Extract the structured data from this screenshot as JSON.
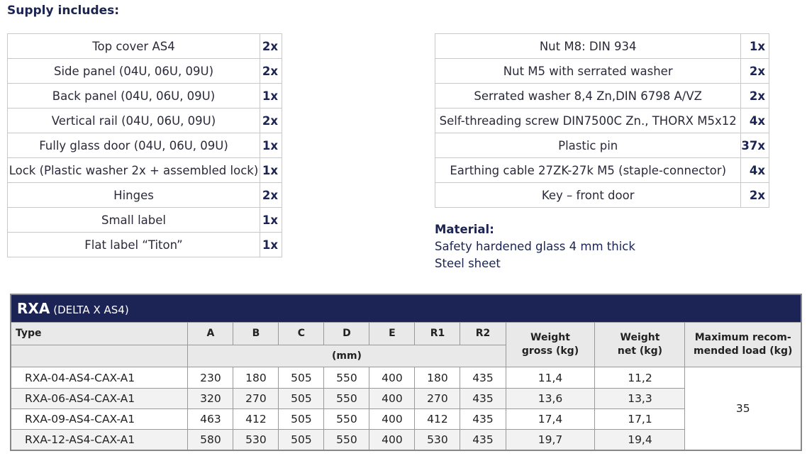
{
  "header": {
    "title": "Supply includes:"
  },
  "left_items": [
    [
      "Top cover AS4",
      "2x"
    ],
    [
      "Side panel (04U, 06U, 09U)",
      "2x"
    ],
    [
      "Back panel (04U, 06U, 09U)",
      "1x"
    ],
    [
      "Vertical rail (04U, 06U, 09U)",
      "2x"
    ],
    [
      "Fully glass door (04U, 06U, 09U)",
      "1x"
    ],
    [
      "Lock (Plastic washer 2x + assembled lock)",
      "1x"
    ],
    [
      "Hinges",
      "2x"
    ],
    [
      "Small label",
      "1x"
    ],
    [
      "Flat label “Titon”",
      "1x"
    ]
  ],
  "right_items": [
    [
      "Nut M8: DIN 934",
      "1x"
    ],
    [
      "Nut M5 with serrated washer",
      "2x"
    ],
    [
      "Serrated washer 8,4 Zn,DIN 6798 A/VZ",
      "2x"
    ],
    [
      "Self-threading screw DIN7500C Zn., THORX M5x12",
      "4x"
    ],
    [
      "Plastic pin",
      "37x"
    ],
    [
      "Earthing cable 27ZK-27k M5 (staple-connector)",
      "4x"
    ],
    [
      "Key – front door",
      "2x"
    ]
  ],
  "material": {
    "title": "Material:",
    "lines": [
      "Safety hardened glass 4 mm thick",
      "Steel sheet"
    ]
  },
  "table": {
    "title": "RXA",
    "subtitle": "(DELTA X AS4)",
    "columns": [
      "Type",
      "A",
      "B",
      "C",
      "D",
      "E",
      "R1",
      "R2",
      "Weight\ngross (kg)",
      "Weight\nnet (kg)",
      "Maximum recom-\nmended load (kg)"
    ],
    "unit": "(mm)",
    "rows": [
      [
        "RXA-04-AS4-CAX-A1",
        "230",
        "180",
        "505",
        "550",
        "400",
        "180",
        "435",
        "11,4",
        "11,2"
      ],
      [
        "RXA-06-AS4-CAX-A1",
        "320",
        "270",
        "505",
        "550",
        "400",
        "270",
        "435",
        "13,6",
        "13,3"
      ],
      [
        "RXA-09-AS4-CAX-A1",
        "463",
        "412",
        "505",
        "550",
        "400",
        "412",
        "435",
        "17,4",
        "17,1"
      ],
      [
        "RXA-12-AS4-CAX-A1",
        "580",
        "530",
        "505",
        "550",
        "400",
        "530",
        "435",
        "19,7",
        "19,4"
      ]
    ],
    "max_load": "35"
  }
}
